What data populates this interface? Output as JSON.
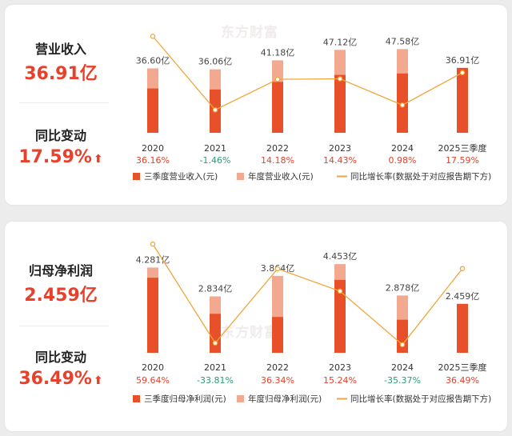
{
  "watermark": "东方财富",
  "panels": [
    {
      "metric_label": "营业收入",
      "metric_value": "36.91亿",
      "change_label": "同比变动",
      "change_value": "17.59%",
      "change_arrow": "arrow-up-icon",
      "legend": {
        "quarter": "三季度营业收入(元)",
        "annual": "年度营业收入(元)",
        "growth": "同比增长率(数据处于对应报告期下方)"
      }
    },
    {
      "metric_label": "归母净利润",
      "metric_value": "2.459亿",
      "change_label": "同比变动",
      "change_value": "36.49%",
      "change_arrow": "arrow-up-icon",
      "legend": {
        "quarter": "三季度归母净利润(元)",
        "annual": "年度归母净利润(元)",
        "growth": "同比增长率(数据处于对应报告期下方)"
      }
    }
  ],
  "chart_data": [
    {
      "type": "bar",
      "categories": [
        "2020",
        "2021",
        "2022",
        "2023",
        "2024",
        "2025三季度"
      ],
      "unit": "亿",
      "series": [
        {
          "name": "三季度营业收入(元)",
          "values": [
            25.2,
            24.6,
            28.9,
            32.9,
            33.7,
            36.91
          ],
          "color": "#e8502a"
        },
        {
          "name": "年度营业收入(元)",
          "values": [
            36.6,
            36.06,
            41.18,
            47.12,
            47.58,
            null
          ],
          "color": "#f2a98f"
        },
        {
          "name": "同比增长率(数据处于对应报告期下方)",
          "values": [
            36.16,
            -1.46,
            14.18,
            14.43,
            0.98,
            17.59
          ],
          "color": "#f0a63a",
          "axis": "secondary"
        }
      ],
      "bar_labels": [
        "36.60亿",
        "36.06亿",
        "41.18亿",
        "47.12亿",
        "47.58亿",
        "36.91亿"
      ],
      "growth_labels": [
        "36.16%",
        "-1.46%",
        "14.18%",
        "14.43%",
        "0.98%",
        "17.59%"
      ],
      "ylim": [
        0,
        50
      ],
      "growth_ylim": [
        -5,
        40
      ],
      "colors": {
        "positive": "#e8402b",
        "negative": "#2e9a76"
      }
    },
    {
      "type": "bar",
      "categories": [
        "2020",
        "2021",
        "2022",
        "2023",
        "2024",
        "2025三季度"
      ],
      "unit": "亿",
      "series": [
        {
          "name": "三季度归母净利润(元)",
          "values": [
            3.77,
            1.96,
            1.8,
            3.66,
            1.66,
            2.459
          ],
          "color": "#e8502a"
        },
        {
          "name": "年度归母净利润(元)",
          "values": [
            4.281,
            2.834,
            3.864,
            4.453,
            2.878,
            null
          ],
          "color": "#f2a98f"
        },
        {
          "name": "同比增长率(数据处于对应报告期下方)",
          "values": [
            59.64,
            -33.81,
            36.34,
            15.24,
            -35.37,
            36.49
          ],
          "color": "#f0a63a",
          "axis": "secondary"
        }
      ],
      "bar_labels": [
        "4.281亿",
        "2.834亿",
        "3.864亿",
        "4.453亿",
        "2.878亿",
        "2.459亿"
      ],
      "growth_labels": [
        "59.64%",
        "-33.81%",
        "36.34%",
        "15.24%",
        "-35.37%",
        "36.49%"
      ],
      "ylim": [
        0,
        4.9
      ],
      "growth_ylim": [
        -40,
        62
      ],
      "colors": {
        "positive": "#e8402b",
        "negative": "#2e9a76"
      }
    }
  ]
}
